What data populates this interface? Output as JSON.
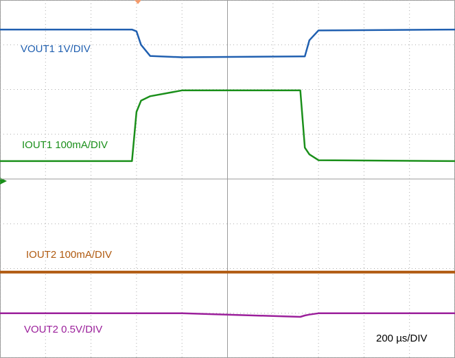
{
  "chart_data": {
    "type": "line",
    "timebase": "200 µs/DIV",
    "x": [
      0,
      2.9,
      3.0,
      3.1,
      3.3,
      4.0,
      6.6,
      6.7,
      6.8,
      7.0,
      10
    ],
    "xlim": [
      0,
      10
    ],
    "ylim": [
      0,
      8
    ],
    "xticks": [
      0,
      1,
      2,
      3,
      4,
      5,
      6,
      7,
      8,
      9,
      10
    ],
    "yticks": [
      0,
      1,
      2,
      3,
      4,
      5,
      6,
      7,
      8
    ],
    "grid": true,
    "series": [
      {
        "name": "VOUT1 1V/DIV",
        "color": "#1f5fb0",
        "values": [
          7.34,
          7.34,
          7.3,
          7.0,
          6.75,
          6.72,
          6.74,
          6.74,
          7.1,
          7.32,
          7.34
        ]
      },
      {
        "name": "IOUT1 100mA/DIV",
        "color": "#1a8f1a",
        "values": [
          4.4,
          4.4,
          5.5,
          5.75,
          5.85,
          5.98,
          5.98,
          4.7,
          4.55,
          4.42,
          4.4
        ]
      },
      {
        "name": "IOUT2 100mA/DIV",
        "color": "#b05a10",
        "values": [
          1.92,
          1.92,
          1.92,
          1.92,
          1.92,
          1.92,
          1.92,
          1.92,
          1.92,
          1.92,
          1.92
        ]
      },
      {
        "name": "VOUT2 0.5V/DIV",
        "color": "#9b1f9b",
        "values": [
          1.0,
          1.0,
          1.0,
          1.0,
          1.0,
          1.0,
          0.92,
          0.95,
          0.97,
          1.0,
          1.0
        ]
      }
    ]
  }
}
